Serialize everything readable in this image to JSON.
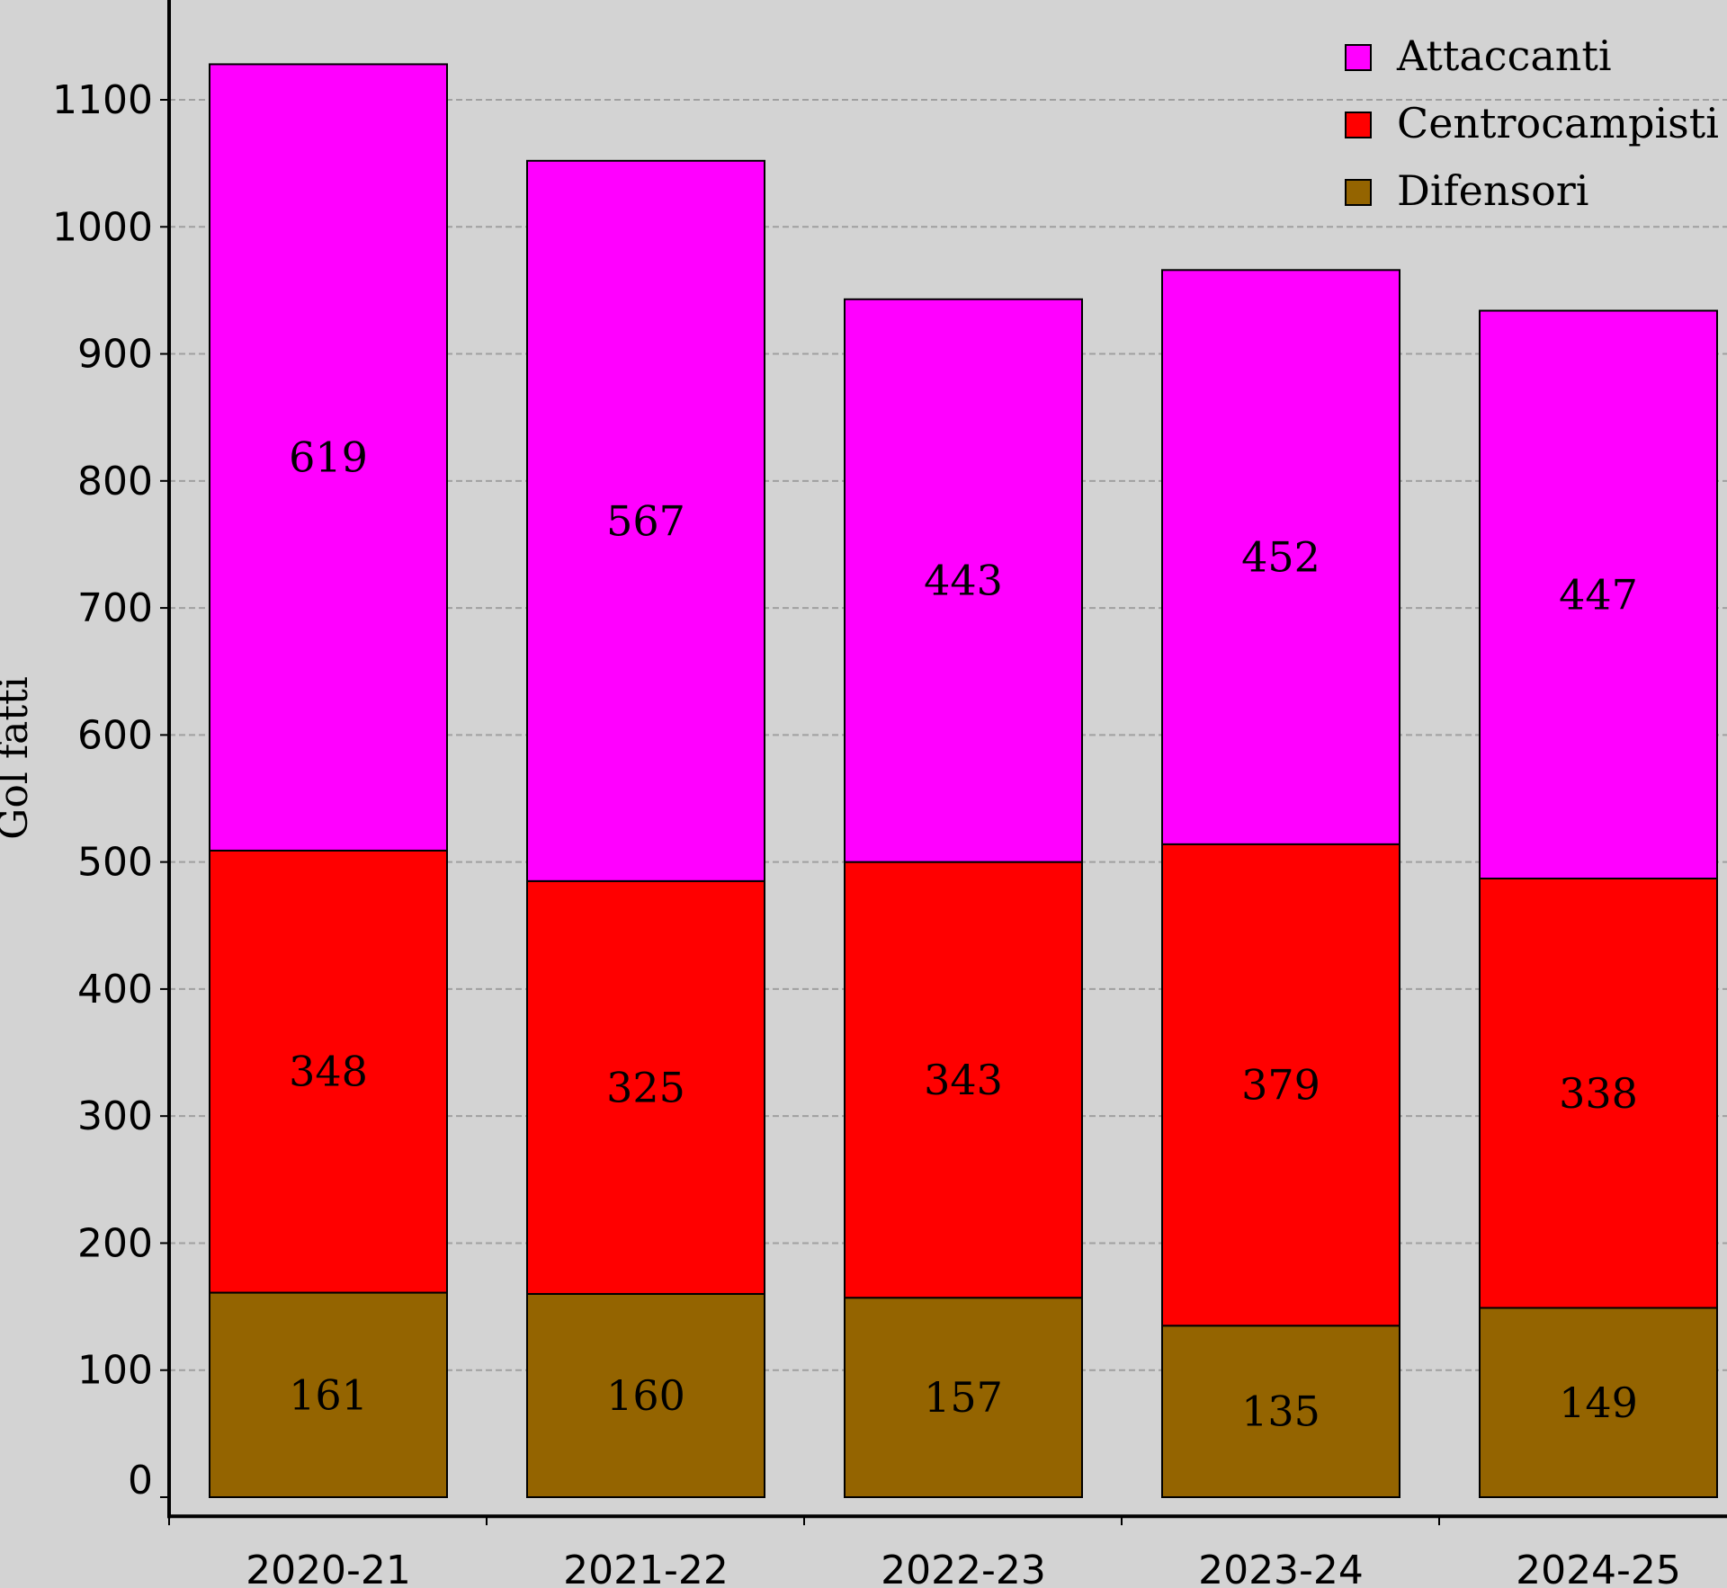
{
  "chart_data": {
    "type": "bar",
    "stacked": true,
    "categories": [
      "2020-21",
      "2021-22",
      "2022-23",
      "2023-24",
      "2024-25"
    ],
    "series": [
      {
        "name": "Difensori",
        "values": [
          161,
          160,
          157,
          135,
          149
        ],
        "color": "#946400"
      },
      {
        "name": "Centrocampisti",
        "values": [
          348,
          325,
          343,
          379,
          338
        ],
        "color": "#ff0000"
      },
      {
        "name": "Attaccanti",
        "values": [
          619,
          567,
          443,
          452,
          447
        ],
        "color": "#ff00ff"
      }
    ],
    "title": "",
    "xlabel": "",
    "ylabel": "Gol fatti",
    "ylim": [
      -15,
      1175
    ],
    "yticks": [
      0,
      100,
      200,
      300,
      400,
      500,
      600,
      700,
      800,
      900,
      1000,
      1100
    ],
    "grid": "horizontal-dashed",
    "legend": "top-right",
    "background": "#d3d3d3",
    "legend_order": [
      "Attaccanti",
      "Centrocampisti",
      "Difensori"
    ]
  }
}
